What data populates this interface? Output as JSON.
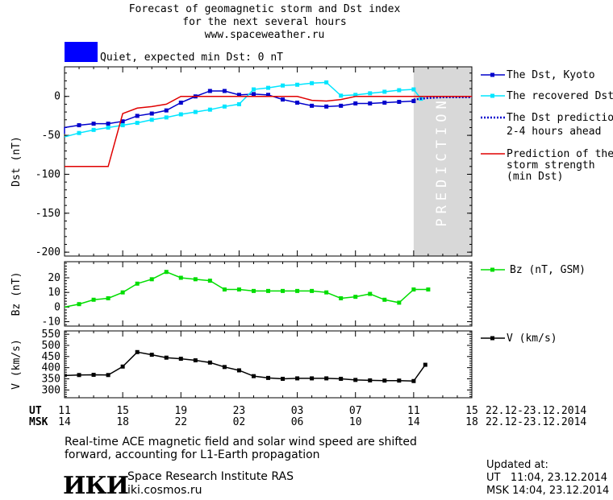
{
  "header": {
    "title_line1": "Forecast of geomagnetic storm and Dst index",
    "title_line2": "for the next several hours",
    "title_line3": "www.spaceweather.ru",
    "status_color": "#0000ff",
    "status_text": "Quiet, expected min Dst: 0 nT"
  },
  "legend": {
    "dst_kyoto": "The Dst, Kyoto",
    "dst_recovered": "The recovered Dst",
    "dst_prediction_1": "The Dst prediction",
    "dst_prediction_2": "2-4 hours ahead",
    "strength_1": "Prediction of the",
    "strength_2": "storm strength",
    "strength_3": "(min Dst)",
    "bz": "Bz (nT, GSM)",
    "v": "V (km/s)"
  },
  "axes": {
    "dst_ylabel": "Dst (nT)",
    "bz_ylabel": "Bz (nT)",
    "v_ylabel": "V (km/s)",
    "prediction_text": "PREDICTION",
    "ut_label": "UT",
    "msk_label": "MSK",
    "ut_ticks": [
      "11",
      "15",
      "19",
      "23",
      "03",
      "07",
      "11",
      "15"
    ],
    "msk_ticks": [
      "14",
      "18",
      "22",
      "02",
      "06",
      "10",
      "14",
      "18"
    ],
    "date_range_ut": "22.12-23.12.2014",
    "date_range_msk": "22.12-23.12.2014"
  },
  "footer": {
    "note_line1": "Real-time ACE magnetic field and solar wind speed are shifted",
    "note_line2": "forward, accounting for L1-Earth propagation",
    "logo": "ИКИ",
    "institute": "Space Research Institute RAS",
    "website": "iki.cosmos.ru",
    "updated_label": "Updated at:",
    "updated_ut": "UT   11:04, 23.12.2014",
    "updated_msk": "MSK 14:04, 23.12.2014"
  },
  "chart_data": [
    {
      "type": "line",
      "title": "Forecast of geomagnetic storm and Dst index",
      "xlabel": "UT / MSK",
      "ylabel": "Dst (nT)",
      "x_unit": "hours since 11 UT, 22.12.2014",
      "xlim": [
        0,
        28
      ],
      "ylim": [
        -205,
        38
      ],
      "yticks": [
        0,
        -50,
        -100,
        -150,
        -200
      ],
      "prediction_region": [
        24,
        28
      ],
      "series": [
        {
          "name": "The Dst, Kyoto",
          "color": "#0000cc",
          "x": [
            -1,
            0,
            1,
            2,
            3,
            4,
            5,
            6,
            7,
            8,
            9,
            10,
            11,
            12,
            13,
            14,
            15,
            16,
            17,
            18,
            19,
            20,
            21,
            22,
            23,
            24
          ],
          "y": [
            -48,
            -40,
            -37,
            -35,
            -35,
            -32,
            -25,
            -22,
            -18,
            -8,
            0,
            7,
            7,
            2,
            3,
            2,
            -4,
            -8,
            -12,
            -13,
            -12,
            -9,
            -9,
            -8,
            -7,
            -6
          ]
        },
        {
          "name": "The recovered Dst",
          "color": "#00e5ff",
          "x": [
            0,
            1,
            2,
            3,
            4,
            5,
            6,
            7,
            8,
            9,
            10,
            11,
            12,
            13,
            14,
            15,
            16,
            17,
            18,
            19,
            20,
            21,
            22,
            23,
            24,
            24.5
          ],
          "y": [
            -52,
            -47,
            -43,
            -40,
            -37,
            -34,
            -30,
            -27,
            -23,
            -20,
            -17,
            -13,
            -10,
            9,
            11,
            14,
            15,
            17,
            18,
            1,
            2,
            4,
            6,
            8,
            9,
            -3
          ]
        },
        {
          "name": "The Dst prediction 2-4 hours ahead",
          "color": "#0000cc",
          "x": [
            24,
            25,
            26,
            27,
            28
          ],
          "y": [
            -4,
            -2,
            -1,
            -1,
            -1
          ]
        },
        {
          "name": "Prediction of the storm strength (min Dst)",
          "color": "#e00000",
          "x": [
            -1,
            3,
            4,
            5,
            6,
            7,
            8,
            9,
            10,
            11,
            12,
            13,
            14,
            15,
            16,
            17,
            18,
            19,
            20,
            21,
            22,
            23,
            24,
            25,
            26,
            27,
            28
          ],
          "y": [
            -90,
            -90,
            -22,
            -15,
            -13,
            -10,
            0,
            0,
            0,
            0,
            0,
            0,
            0,
            0,
            0,
            -5,
            -6,
            -4,
            0,
            0,
            0,
            0,
            0,
            0,
            0,
            0,
            0
          ]
        }
      ]
    },
    {
      "type": "line",
      "ylabel": "Bz (nT)",
      "ylim": [
        -13,
        31
      ],
      "yticks": [
        -10,
        0,
        10,
        20
      ],
      "series": [
        {
          "name": "Bz (nT, GSM)",
          "color": "#00dd00",
          "x": [
            0,
            1,
            2,
            3,
            4,
            5,
            6,
            7,
            8,
            9,
            10,
            11,
            12,
            13,
            14,
            15,
            16,
            17,
            18,
            19,
            20,
            21,
            22,
            23,
            24,
            25
          ],
          "y": [
            0,
            2,
            5,
            6,
            10,
            16,
            19,
            24,
            20,
            19,
            18,
            12,
            12,
            11,
            11,
            11,
            11,
            11,
            10,
            6,
            7,
            9,
            5,
            3,
            12,
            12
          ]
        }
      ]
    },
    {
      "type": "line",
      "ylabel": "V (km/s)",
      "ylim": [
        265,
        565
      ],
      "yticks": [
        300,
        350,
        400,
        450,
        500,
        550
      ],
      "series": [
        {
          "name": "V (km/s)",
          "color": "#000000",
          "x": [
            0,
            1,
            2,
            3,
            4,
            5,
            6,
            7,
            8,
            9,
            10,
            11,
            12,
            13,
            14,
            15,
            16,
            17,
            18,
            19,
            20,
            21,
            22,
            23,
            24,
            24.8
          ],
          "y": [
            365,
            367,
            368,
            367,
            405,
            470,
            458,
            445,
            440,
            433,
            423,
            403,
            388,
            362,
            354,
            350,
            352,
            352,
            352,
            350,
            345,
            343,
            342,
            342,
            340,
            413
          ]
        }
      ]
    }
  ]
}
